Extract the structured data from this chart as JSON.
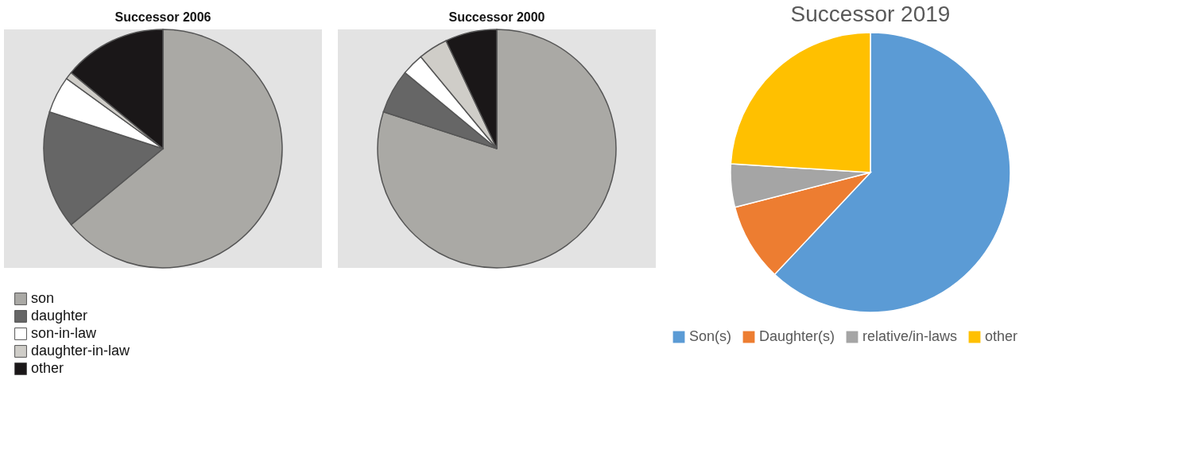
{
  "chart_data": [
    {
      "type": "pie",
      "title": "Successor 2006",
      "categories": [
        "son",
        "daughter",
        "son-in-law",
        "daughter-in-law",
        "other"
      ],
      "values": [
        64,
        16,
        5,
        1,
        14
      ],
      "colors": [
        "#aaa9a5",
        "#666666",
        "#ffffff",
        "#cfcdc8",
        "#1a1718"
      ],
      "legend": "bottom left"
    },
    {
      "type": "pie",
      "title": "Successor 2000",
      "categories": [
        null,
        null,
        null,
        null,
        null
      ],
      "values": [
        80,
        6,
        3,
        4,
        7
      ],
      "colors": [
        "#aaa9a5",
        "#666666",
        "#ffffff",
        "#cfcdc8",
        "#1a1718"
      ],
      "legend": false
    },
    {
      "type": "pie",
      "title": "Successor 2019",
      "categories": [
        "Son(s)",
        "Daughter(s)",
        "relative/in-laws",
        "other"
      ],
      "values": [
        62,
        9,
        5,
        24
      ],
      "colors": [
        "#5b9bd5",
        "#ed7d31",
        "#a5a5a5",
        "#ffc000"
      ],
      "legend": "bottom"
    }
  ]
}
